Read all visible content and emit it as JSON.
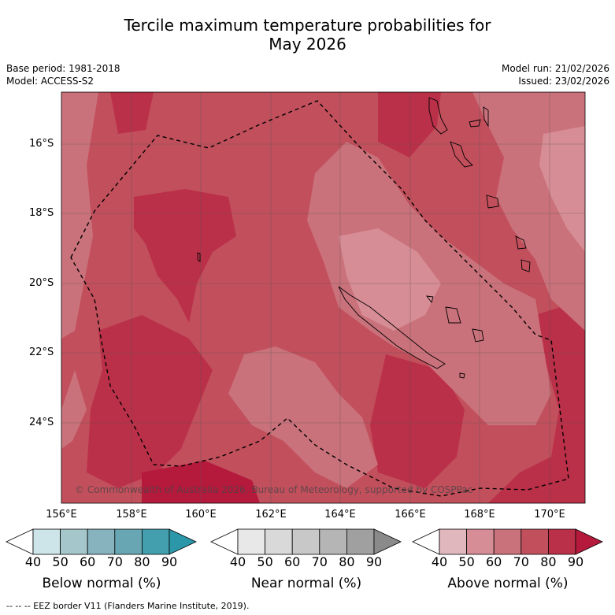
{
  "title_line1": "Tercile maximum temperature probabilities for",
  "title_line2": "May 2026",
  "base_period": "Base period: 1981-2018",
  "model": "Model: ACCESS-S2",
  "model_run": "Model run: 21/02/2026",
  "issued": "Issued: 23/02/2026",
  "copyright": "© Commonwealth of Australia 2026, Bureau of Meteorology, supported by COSPPac",
  "footnote": "-- -- -- EEZ border V11 (Flanders Marine Institute, 2019).",
  "lat_labels": [
    "16°S",
    "18°S",
    "20°S",
    "22°S",
    "24°S"
  ],
  "lon_labels": [
    "156°E",
    "158°E",
    "160°E",
    "162°E",
    "164°E",
    "166°E",
    "168°E",
    "170°E"
  ],
  "colorbars": [
    {
      "name": "below",
      "title": "Below normal (%)",
      "ticks": [
        "40",
        "50",
        "60",
        "70",
        "80",
        "90"
      ],
      "colors": [
        "#ffffff",
        "#cde4e8",
        "#a5c7cc",
        "#86b3bd",
        "#69a6b3",
        "#439fad",
        "#2c97a9"
      ]
    },
    {
      "name": "near",
      "title": "Near normal (%)",
      "ticks": [
        "40",
        "50",
        "60",
        "70",
        "80",
        "90"
      ],
      "colors": [
        "#ffffff",
        "#e8e8e8",
        "#d9d9d9",
        "#c8c8c8",
        "#b5b5b5",
        "#a0a0a0",
        "#8a8a8a"
      ]
    },
    {
      "name": "above",
      "title": "Above normal (%)",
      "ticks": [
        "40",
        "50",
        "60",
        "70",
        "80",
        "90"
      ],
      "colors": [
        "#ffffff",
        "#e1b7be",
        "#d78d95",
        "#ca727b",
        "#c24f5c",
        "#bb3049",
        "#b51a3d"
      ]
    }
  ],
  "colors": {
    "band60": "#ca727b",
    "band70": "#c24f5c",
    "band80": "#bb3049",
    "band50": "#d78d95"
  }
}
